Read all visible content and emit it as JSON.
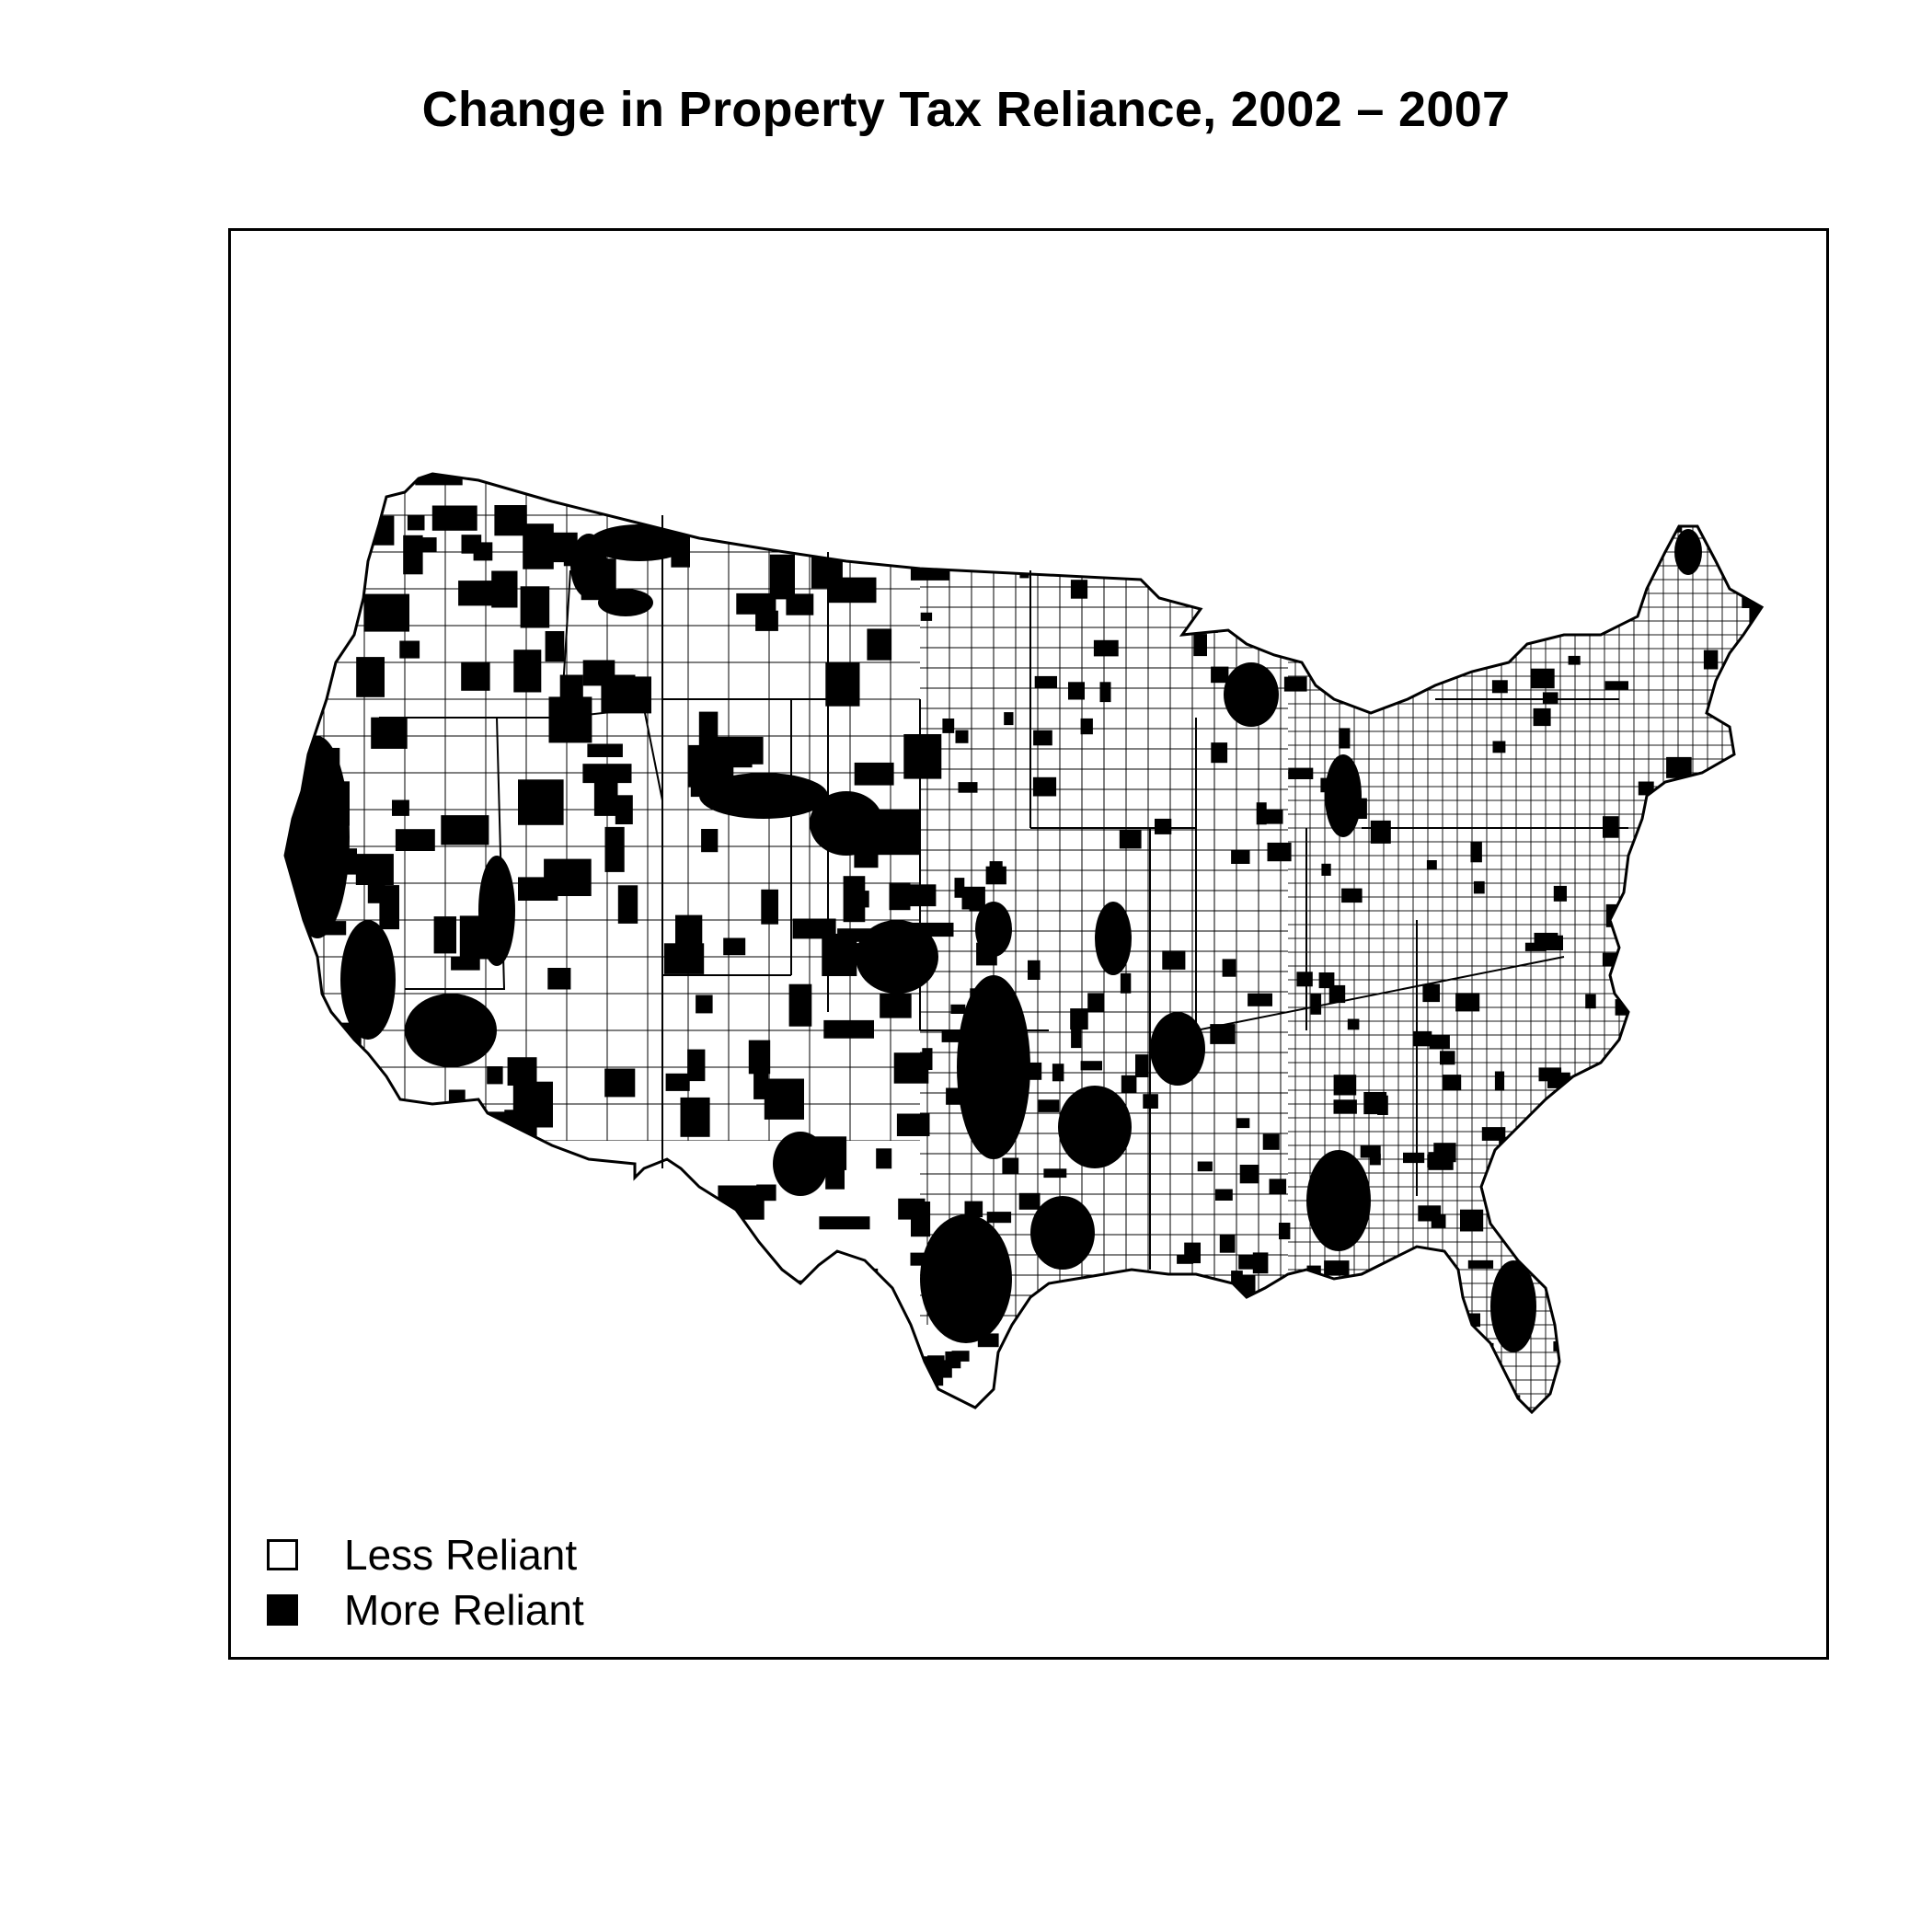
{
  "title": "Change in Property Tax Reliance, 2002 – 2007",
  "legend": {
    "items": [
      {
        "label": "Less Reliant",
        "fill": "#ffffff"
      },
      {
        "label": "More Reliant",
        "fill": "#000000"
      }
    ]
  },
  "map": {
    "region": "Contiguous United States",
    "unit": "county",
    "colors": {
      "less_reliant": "#ffffff",
      "more_reliant": "#000000",
      "boundary": "#000000"
    }
  }
}
